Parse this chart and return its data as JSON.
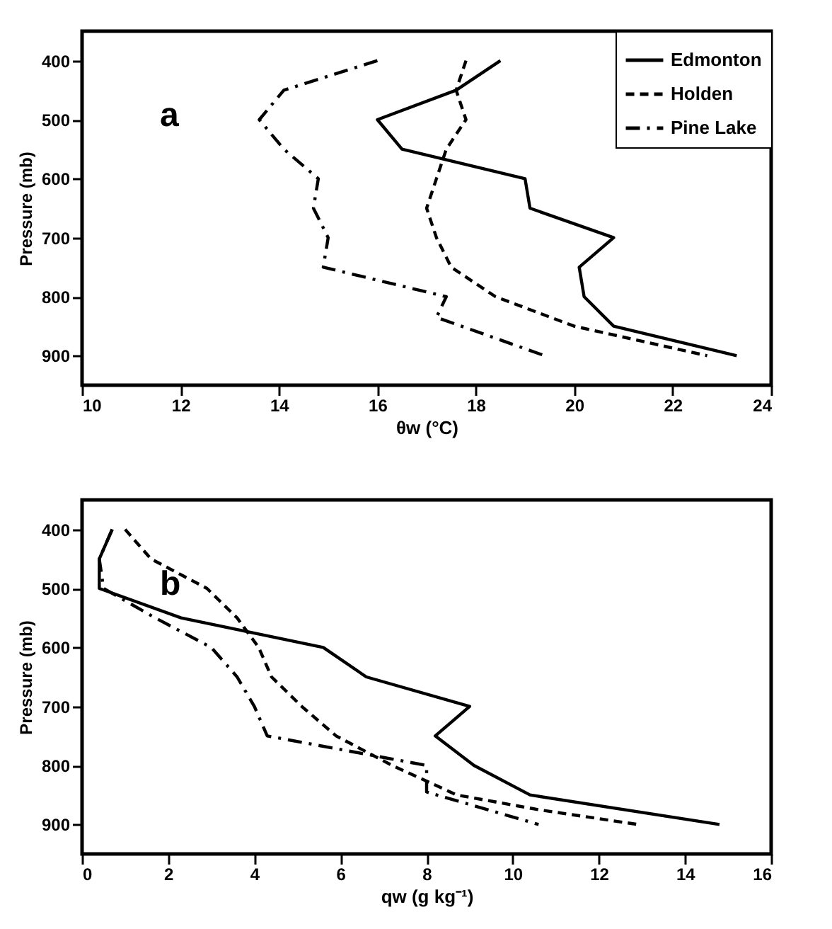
{
  "chart_data": [
    {
      "type": "line",
      "xlabel": "θw (°C)",
      "ylabel": "Pressure (mb)",
      "annotations": [
        "a"
      ],
      "xlim": [
        10,
        24
      ],
      "xticks": [
        10,
        12,
        14,
        16,
        18,
        20,
        22,
        24
      ],
      "ylim": [
        950,
        350
      ],
      "yticks": [
        400,
        500,
        600,
        700,
        800,
        900
      ],
      "grid": false,
      "legend": "top right",
      "series": [
        {
          "name": "Edmonton",
          "color": "#000000",
          "line_style": "solid",
          "x": [
            18.5,
            17.6,
            16.0,
            16.5,
            19.0,
            19.1,
            20.8,
            20.1,
            20.2,
            20.8,
            23.3
          ],
          "values": [
            400,
            450,
            500,
            550,
            600,
            650,
            700,
            750,
            800,
            850,
            900
          ]
        },
        {
          "name": "Holden",
          "color": "#000000",
          "line_style": "dashed",
          "x": [
            17.8,
            17.6,
            17.8,
            17.4,
            17.2,
            17.0,
            17.2,
            17.5,
            18.4,
            20.0,
            22.7
          ],
          "values": [
            400,
            450,
            500,
            550,
            600,
            650,
            700,
            750,
            800,
            850,
            900
          ]
        },
        {
          "name": "Pine Lake",
          "color": "#000000",
          "line_style": "dashdot",
          "x": [
            16.0,
            14.1,
            13.6,
            14.1,
            14.8,
            14.7,
            15.0,
            14.9,
            17.4,
            17.2,
            19.4
          ],
          "values": [
            400,
            450,
            500,
            550,
            600,
            650,
            700,
            750,
            800,
            835,
            900
          ]
        }
      ]
    },
    {
      "type": "line",
      "xlabel": "qw (g kg⁻¹)",
      "ylabel": "Pressure (mb)",
      "annotations": [
        "b"
      ],
      "xlim": [
        0,
        16
      ],
      "xticks": [
        0,
        2,
        4,
        6,
        8,
        10,
        12,
        14,
        16
      ],
      "ylim": [
        950,
        350
      ],
      "yticks": [
        400,
        500,
        600,
        700,
        800,
        900
      ],
      "grid": false,
      "legend": "top right",
      "series": [
        {
          "name": "Edmonton",
          "color": "#000000",
          "line_style": "solid",
          "x": [
            0.7,
            0.4,
            0.4,
            2.3,
            5.6,
            6.6,
            9.0,
            8.2,
            9.1,
            10.4,
            14.8
          ],
          "values": [
            400,
            450,
            500,
            550,
            600,
            650,
            700,
            750,
            800,
            850,
            900
          ]
        },
        {
          "name": "Holden",
          "color": "#000000",
          "line_style": "dashed",
          "x": [
            1.0,
            1.6,
            2.9,
            3.6,
            4.1,
            4.4,
            5.1,
            5.9,
            7.2,
            8.7,
            10.6,
            12.9
          ],
          "values": [
            400,
            450,
            500,
            550,
            600,
            650,
            700,
            750,
            800,
            850,
            875,
            900
          ]
        },
        {
          "name": "Pine Lake",
          "color": "#000000",
          "line_style": "dashdot",
          "x": [
            0.7,
            0.4,
            0.5,
            1.7,
            3.0,
            3.6,
            4.0,
            4.3,
            8.0,
            8.0,
            10.6
          ],
          "values": [
            400,
            450,
            500,
            550,
            600,
            650,
            700,
            750,
            800,
            845,
            900
          ]
        }
      ]
    }
  ]
}
